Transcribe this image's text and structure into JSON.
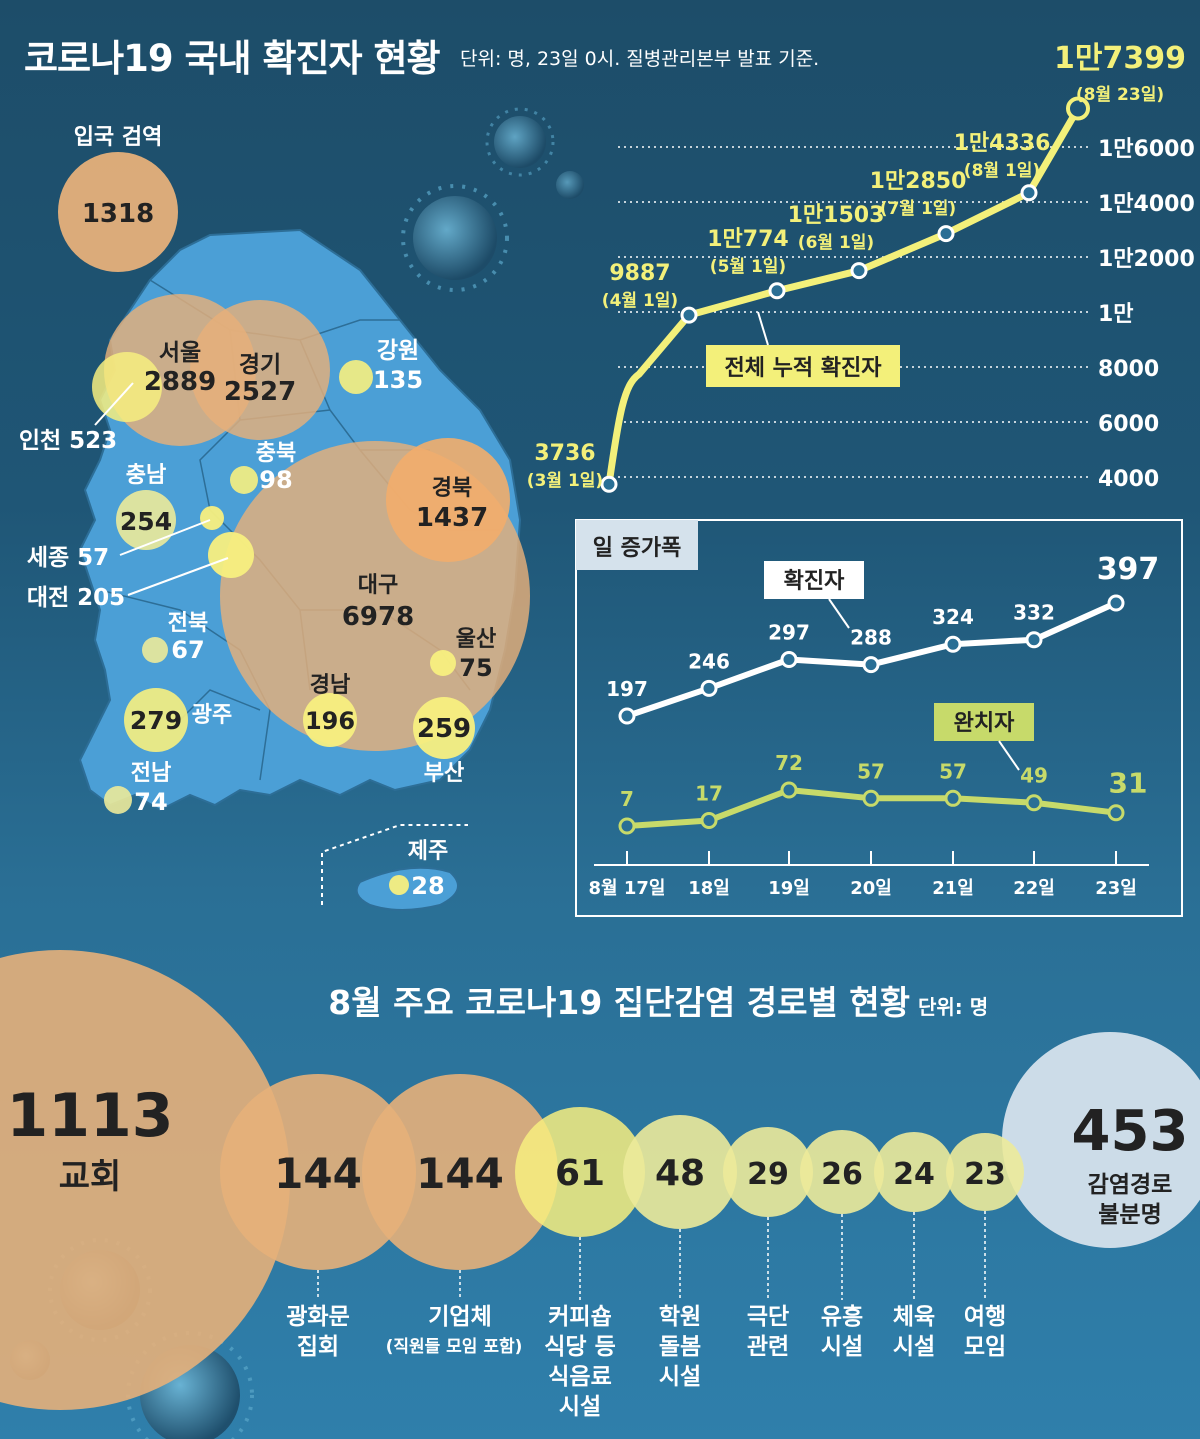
{
  "title": "코로나19 국내 확진자 현황",
  "unit_note": "단위: 명, 23일 0시. 질병관리본부 발표 기준.",
  "regions": [
    {
      "name": "입국 검역",
      "value": "1318",
      "display": "1318",
      "color": "#e6b07a"
    },
    {
      "name": "서울",
      "value": "2889",
      "display": "2889"
    },
    {
      "name": "경기",
      "value": "2527",
      "display": "2527"
    },
    {
      "name": "인천",
      "value": "523",
      "display": "인천 523"
    },
    {
      "name": "강원",
      "value": "135",
      "display": "135"
    },
    {
      "name": "충북",
      "value": "98",
      "display": "98"
    },
    {
      "name": "충남",
      "value": "254",
      "display": "254"
    },
    {
      "name": "세종",
      "value": "57",
      "display": "세종 57"
    },
    {
      "name": "대전",
      "value": "205",
      "display": "대전 205"
    },
    {
      "name": "경북",
      "value": "1437",
      "display": "1437"
    },
    {
      "name": "대구",
      "value": "6978",
      "display": "6978"
    },
    {
      "name": "전북",
      "value": "67",
      "display": "67"
    },
    {
      "name": "울산",
      "value": "75",
      "display": "75"
    },
    {
      "name": "광주",
      "value": "279",
      "display": "279"
    },
    {
      "name": "경남",
      "value": "196",
      "display": "196"
    },
    {
      "name": "부산",
      "value": "259",
      "display": "259"
    },
    {
      "name": "전남",
      "value": "74",
      "display": "74"
    },
    {
      "name": "제주",
      "value": "28",
      "display": "28"
    }
  ],
  "chart_data": [
    {
      "type": "line",
      "title": "전체 누적 확진자",
      "x": [
        "3월 1일",
        "4월 1일",
        "5월 1일",
        "6월 1일",
        "7월 1일",
        "8월 1일",
        "8월 23일"
      ],
      "values": [
        3736,
        9887,
        10774,
        11503,
        12850,
        14336,
        17399
      ],
      "value_labels": [
        "3736",
        "9887",
        "1만774",
        "1만1503",
        "1만2850",
        "1만4336",
        "1만7399"
      ],
      "date_labels": [
        "(3월 1일)",
        "(4월 1일)",
        "(5월 1일)",
        "(6월 1일)",
        "(7월 1일)",
        "(8월 1일)",
        "(8월 23일)"
      ],
      "y_ticks": [
        4000,
        6000,
        8000,
        10000,
        12000,
        14000,
        16000
      ],
      "y_tick_labels": [
        "4000",
        "6000",
        "8000",
        "1만",
        "1만2000",
        "1만4000",
        "1만6000"
      ],
      "ylim": [
        4000,
        16000
      ],
      "color": "#f3f07a"
    },
    {
      "type": "line",
      "title": "일 증가폭",
      "categories": [
        "8월 17일",
        "18일",
        "19일",
        "20일",
        "21일",
        "22일",
        "23일"
      ],
      "series": [
        {
          "name": "확진자",
          "values": [
            197,
            246,
            297,
            288,
            324,
            332,
            397
          ],
          "color": "#ffffff"
        },
        {
          "name": "완치자",
          "values": [
            7,
            17,
            72,
            57,
            57,
            49,
            31
          ],
          "color": "#c7da6a"
        }
      ],
      "value_labels_confirmed": [
        "197",
        "246",
        "297",
        "288",
        "324",
        "332",
        "397"
      ],
      "value_labels_recovered": [
        "7",
        "17",
        "72",
        "57",
        "57",
        "49",
        "31"
      ]
    },
    {
      "type": "bubble",
      "title": "8월 주요 코로나19 집단감염 경로별 현황",
      "unit": "단위: 명",
      "categories": [
        "교회",
        "광화문 집회",
        "기업체 (직원들 모임 포함)",
        "커피숍 식당 등 식음료 시설",
        "학원 돌봄 시설",
        "극단 관련",
        "유흥 시설",
        "체육 시설",
        "여행 모임",
        "감염경로 불분명"
      ],
      "values": [
        1113,
        144,
        144,
        61,
        48,
        29,
        26,
        24,
        23,
        453
      ]
    }
  ],
  "cluster_labels": {
    "church_name": "교회",
    "church_value": "1113",
    "gwanghwamun_l1": "광화문",
    "gwanghwamun_l2": "집회",
    "company_l1": "기업체",
    "company_l2": "(직원들 모임 포함)",
    "cafe_l1": "커피숍",
    "cafe_l2": "식당 등",
    "cafe_l3": "식음료",
    "cafe_l4": "시설",
    "academy_l1": "학원",
    "academy_l2": "돌봄",
    "academy_l3": "시설",
    "theater_l1": "극단",
    "theater_l2": "관련",
    "bar_l1": "유흥",
    "bar_l2": "시설",
    "gym_l1": "체육",
    "gym_l2": "시설",
    "travel_l1": "여행",
    "travel_l2": "모임",
    "unknown_l1": "감염경로",
    "unknown_l2": "불분명",
    "v144a": "144",
    "v144b": "144",
    "v61": "61",
    "v48": "48",
    "v29": "29",
    "v26": "26",
    "v24": "24",
    "v23": "23",
    "v453": "453"
  },
  "colors": {
    "tan": "#e6b07a",
    "yellow": "#f7ef7f",
    "lightyellow": "#ecea9a",
    "map": "#4b9fd6",
    "pale_blue": "#d5e2ec"
  }
}
